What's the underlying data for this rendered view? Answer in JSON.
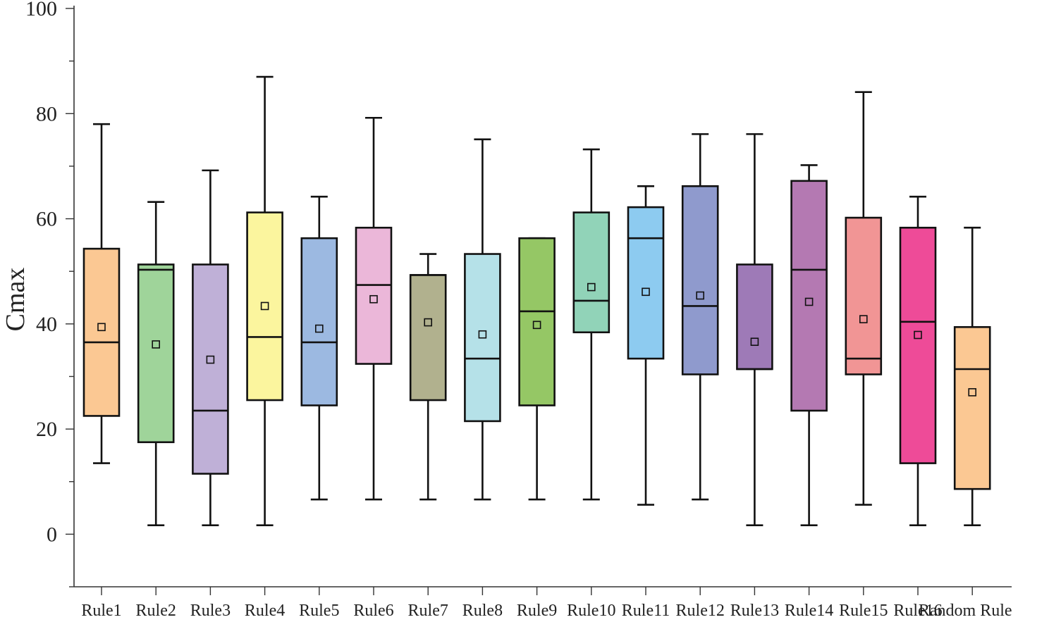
{
  "chart_data": {
    "type": "box",
    "ylabel": "Cmax",
    "xlabel": "",
    "ylim": [
      -10,
      100
    ],
    "yticks": [
      0,
      20,
      40,
      60,
      80,
      100
    ],
    "grid": false,
    "categories": [
      "Rule1",
      "Rule2",
      "Rule3",
      "Rule4",
      "Rule5",
      "Rule6",
      "Rule7",
      "Rule8",
      "Rule9",
      "Rule10",
      "Rule11",
      "Rule12",
      "Rule13",
      "Rule14",
      "Rule15",
      "Rule16",
      "Random Rule"
    ],
    "boxes": [
      {
        "min": 13.5,
        "q1": 22.5,
        "median": 36.5,
        "q3": 54.3,
        "max": 78.0,
        "mean": 39.4,
        "color": "#FBC893"
      },
      {
        "min": 1.7,
        "q1": 17.5,
        "median": 50.3,
        "q3": 51.3,
        "max": 63.2,
        "mean": 36.1,
        "color": "#9FD49A"
      },
      {
        "min": 1.7,
        "q1": 11.5,
        "median": 23.5,
        "q3": 51.3,
        "max": 69.2,
        "mean": 33.2,
        "color": "#BFB0D7"
      },
      {
        "min": 1.7,
        "q1": 25.5,
        "median": 37.5,
        "q3": 61.2,
        "max": 87.0,
        "mean": 43.4,
        "color": "#FBF59E"
      },
      {
        "min": 6.6,
        "q1": 24.5,
        "median": 36.5,
        "q3": 56.3,
        "max": 64.2,
        "mean": 39.1,
        "color": "#9CB9E1"
      },
      {
        "min": 6.6,
        "q1": 32.4,
        "median": 47.4,
        "q3": 58.3,
        "max": 79.2,
        "mean": 44.7,
        "color": "#EBB7D9"
      },
      {
        "min": 6.6,
        "q1": 25.5,
        "median": 49.3,
        "q3": 49.3,
        "max": 53.3,
        "mean": 40.3,
        "color": "#B1B18E"
      },
      {
        "min": 6.6,
        "q1": 21.5,
        "median": 33.4,
        "q3": 53.3,
        "max": 75.1,
        "mean": 38.0,
        "color": "#B5E1E8"
      },
      {
        "min": 6.6,
        "q1": 24.5,
        "median": 42.4,
        "q3": 56.3,
        "max": 56.3,
        "mean": 39.8,
        "color": "#95C765"
      },
      {
        "min": 6.6,
        "q1": 38.4,
        "median": 44.4,
        "q3": 61.2,
        "max": 73.2,
        "mean": 47.0,
        "color": "#91D3B8"
      },
      {
        "min": 5.6,
        "q1": 33.4,
        "median": 56.3,
        "q3": 62.2,
        "max": 66.2,
        "mean": 46.1,
        "color": "#8DCBF0"
      },
      {
        "min": 6.6,
        "q1": 30.4,
        "median": 43.4,
        "q3": 66.2,
        "max": 76.1,
        "mean": 45.4,
        "color": "#8F9ACD"
      },
      {
        "min": 1.7,
        "q1": 31.4,
        "median": 31.4,
        "q3": 51.3,
        "max": 76.1,
        "mean": 36.6,
        "color": "#9E7AB7"
      },
      {
        "min": 1.7,
        "q1": 23.5,
        "median": 50.3,
        "q3": 67.2,
        "max": 70.2,
        "mean": 44.2,
        "color": "#B479B2"
      },
      {
        "min": 5.6,
        "q1": 30.4,
        "median": 33.4,
        "q3": 60.2,
        "max": 84.1,
        "mean": 40.9,
        "color": "#F19595"
      },
      {
        "min": 1.7,
        "q1": 13.5,
        "median": 40.4,
        "q3": 58.3,
        "max": 64.2,
        "mean": 37.9,
        "color": "#EE4B98"
      },
      {
        "min": 1.7,
        "q1": 8.6,
        "median": 31.4,
        "q3": 39.4,
        "max": 58.3,
        "mean": 27.0,
        "color": "#FBC893"
      }
    ]
  }
}
